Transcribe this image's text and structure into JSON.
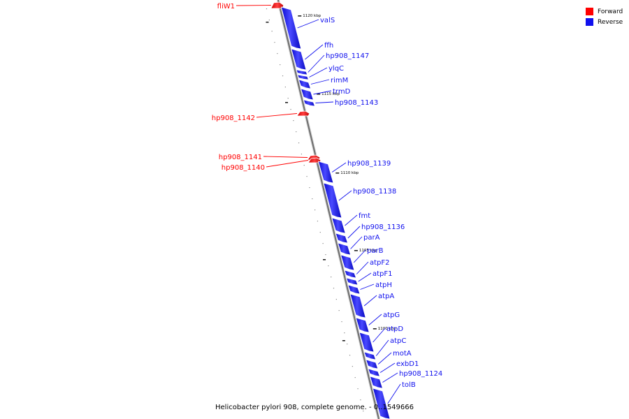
{
  "legend": {
    "forward_label": "Forward",
    "reverse_label": "Reverse",
    "forward_color": "#ff0000",
    "reverse_color": "#1010ee"
  },
  "caption": "Helicobacter pylori 908, complete genome. - 0..1549666",
  "scale": {
    "ticks": [
      {
        "kbp": 1120,
        "label": "1120 kbp"
      },
      {
        "kbp": 1115,
        "label": "1115 kbp"
      },
      {
        "kbp": 1110,
        "label": "1110 kbp"
      },
      {
        "kbp": 1105,
        "label": "1105 kbp"
      },
      {
        "kbp": 1100,
        "label": "1100 kbp"
      }
    ]
  },
  "genes": [
    {
      "name": "fliW1",
      "strand": "forward"
    },
    {
      "name": "valS",
      "strand": "reverse"
    },
    {
      "name": "ffh",
      "strand": "reverse"
    },
    {
      "name": "hp908_1147",
      "strand": "reverse"
    },
    {
      "name": "ylqC",
      "strand": "reverse"
    },
    {
      "name": "rimM",
      "strand": "reverse"
    },
    {
      "name": "trmD",
      "strand": "reverse"
    },
    {
      "name": "hp908_1143",
      "strand": "reverse"
    },
    {
      "name": "hp908_1142",
      "strand": "forward"
    },
    {
      "name": "hp908_1141",
      "strand": "forward"
    },
    {
      "name": "hp908_1140",
      "strand": "forward"
    },
    {
      "name": "hp908_1139",
      "strand": "reverse"
    },
    {
      "name": "hp908_1138",
      "strand": "reverse"
    },
    {
      "name": "fmt",
      "strand": "reverse"
    },
    {
      "name": "hp908_1136",
      "strand": "reverse"
    },
    {
      "name": "parA",
      "strand": "reverse"
    },
    {
      "name": "parB",
      "strand": "reverse"
    },
    {
      "name": "atpF2",
      "strand": "reverse"
    },
    {
      "name": "atpF1",
      "strand": "reverse"
    },
    {
      "name": "atpH",
      "strand": "reverse"
    },
    {
      "name": "atpA",
      "strand": "reverse"
    },
    {
      "name": "atpG",
      "strand": "reverse"
    },
    {
      "name": "atpD",
      "strand": "reverse"
    },
    {
      "name": "atpC",
      "strand": "reverse"
    },
    {
      "name": "motA",
      "strand": "reverse"
    },
    {
      "name": "exbD1",
      "strand": "reverse"
    },
    {
      "name": "hp908_1124",
      "strand": "reverse"
    },
    {
      "name": "tolB",
      "strand": "reverse"
    }
  ]
}
